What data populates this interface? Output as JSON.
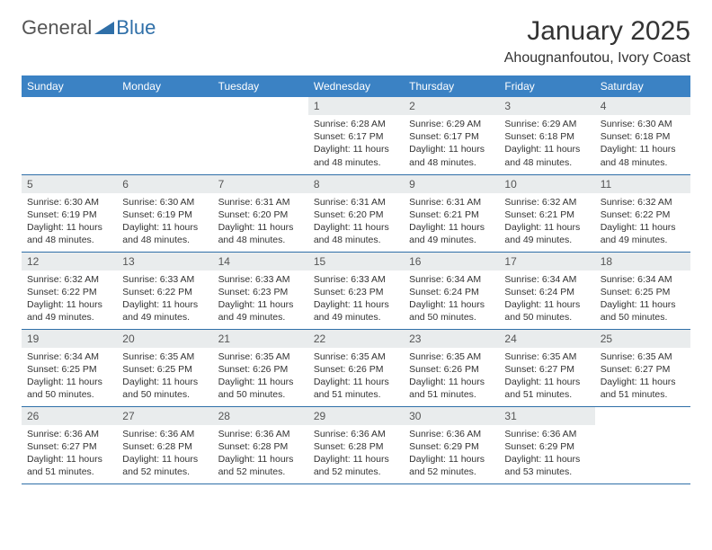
{
  "brand": {
    "part1": "General",
    "part2": "Blue"
  },
  "title": "January 2025",
  "location": "Ahougnanfoutou, Ivory Coast",
  "colors": {
    "header_bg": "#3b82c4",
    "header_text": "#ffffff",
    "daynum_bg": "#e9eced",
    "border": "#2f6fa8",
    "brand_gray": "#555555",
    "brand_blue": "#2f6fa8"
  },
  "weekdays": [
    "Sunday",
    "Monday",
    "Tuesday",
    "Wednesday",
    "Thursday",
    "Friday",
    "Saturday"
  ],
  "weeks": [
    [
      null,
      null,
      null,
      {
        "n": "1",
        "sunrise": "6:28 AM",
        "sunset": "6:17 PM",
        "dl": "11 hours and 48 minutes."
      },
      {
        "n": "2",
        "sunrise": "6:29 AM",
        "sunset": "6:17 PM",
        "dl": "11 hours and 48 minutes."
      },
      {
        "n": "3",
        "sunrise": "6:29 AM",
        "sunset": "6:18 PM",
        "dl": "11 hours and 48 minutes."
      },
      {
        "n": "4",
        "sunrise": "6:30 AM",
        "sunset": "6:18 PM",
        "dl": "11 hours and 48 minutes."
      }
    ],
    [
      {
        "n": "5",
        "sunrise": "6:30 AM",
        "sunset": "6:19 PM",
        "dl": "11 hours and 48 minutes."
      },
      {
        "n": "6",
        "sunrise": "6:30 AM",
        "sunset": "6:19 PM",
        "dl": "11 hours and 48 minutes."
      },
      {
        "n": "7",
        "sunrise": "6:31 AM",
        "sunset": "6:20 PM",
        "dl": "11 hours and 48 minutes."
      },
      {
        "n": "8",
        "sunrise": "6:31 AM",
        "sunset": "6:20 PM",
        "dl": "11 hours and 48 minutes."
      },
      {
        "n": "9",
        "sunrise": "6:31 AM",
        "sunset": "6:21 PM",
        "dl": "11 hours and 49 minutes."
      },
      {
        "n": "10",
        "sunrise": "6:32 AM",
        "sunset": "6:21 PM",
        "dl": "11 hours and 49 minutes."
      },
      {
        "n": "11",
        "sunrise": "6:32 AM",
        "sunset": "6:22 PM",
        "dl": "11 hours and 49 minutes."
      }
    ],
    [
      {
        "n": "12",
        "sunrise": "6:32 AM",
        "sunset": "6:22 PM",
        "dl": "11 hours and 49 minutes."
      },
      {
        "n": "13",
        "sunrise": "6:33 AM",
        "sunset": "6:22 PM",
        "dl": "11 hours and 49 minutes."
      },
      {
        "n": "14",
        "sunrise": "6:33 AM",
        "sunset": "6:23 PM",
        "dl": "11 hours and 49 minutes."
      },
      {
        "n": "15",
        "sunrise": "6:33 AM",
        "sunset": "6:23 PM",
        "dl": "11 hours and 49 minutes."
      },
      {
        "n": "16",
        "sunrise": "6:34 AM",
        "sunset": "6:24 PM",
        "dl": "11 hours and 50 minutes."
      },
      {
        "n": "17",
        "sunrise": "6:34 AM",
        "sunset": "6:24 PM",
        "dl": "11 hours and 50 minutes."
      },
      {
        "n": "18",
        "sunrise": "6:34 AM",
        "sunset": "6:25 PM",
        "dl": "11 hours and 50 minutes."
      }
    ],
    [
      {
        "n": "19",
        "sunrise": "6:34 AM",
        "sunset": "6:25 PM",
        "dl": "11 hours and 50 minutes."
      },
      {
        "n": "20",
        "sunrise": "6:35 AM",
        "sunset": "6:25 PM",
        "dl": "11 hours and 50 minutes."
      },
      {
        "n": "21",
        "sunrise": "6:35 AM",
        "sunset": "6:26 PM",
        "dl": "11 hours and 50 minutes."
      },
      {
        "n": "22",
        "sunrise": "6:35 AM",
        "sunset": "6:26 PM",
        "dl": "11 hours and 51 minutes."
      },
      {
        "n": "23",
        "sunrise": "6:35 AM",
        "sunset": "6:26 PM",
        "dl": "11 hours and 51 minutes."
      },
      {
        "n": "24",
        "sunrise": "6:35 AM",
        "sunset": "6:27 PM",
        "dl": "11 hours and 51 minutes."
      },
      {
        "n": "25",
        "sunrise": "6:35 AM",
        "sunset": "6:27 PM",
        "dl": "11 hours and 51 minutes."
      }
    ],
    [
      {
        "n": "26",
        "sunrise": "6:36 AM",
        "sunset": "6:27 PM",
        "dl": "11 hours and 51 minutes."
      },
      {
        "n": "27",
        "sunrise": "6:36 AM",
        "sunset": "6:28 PM",
        "dl": "11 hours and 52 minutes."
      },
      {
        "n": "28",
        "sunrise": "6:36 AM",
        "sunset": "6:28 PM",
        "dl": "11 hours and 52 minutes."
      },
      {
        "n": "29",
        "sunrise": "6:36 AM",
        "sunset": "6:28 PM",
        "dl": "11 hours and 52 minutes."
      },
      {
        "n": "30",
        "sunrise": "6:36 AM",
        "sunset": "6:29 PM",
        "dl": "11 hours and 52 minutes."
      },
      {
        "n": "31",
        "sunrise": "6:36 AM",
        "sunset": "6:29 PM",
        "dl": "11 hours and 53 minutes."
      },
      null
    ]
  ],
  "labels": {
    "sunrise": "Sunrise:",
    "sunset": "Sunset:",
    "daylight": "Daylight:"
  }
}
